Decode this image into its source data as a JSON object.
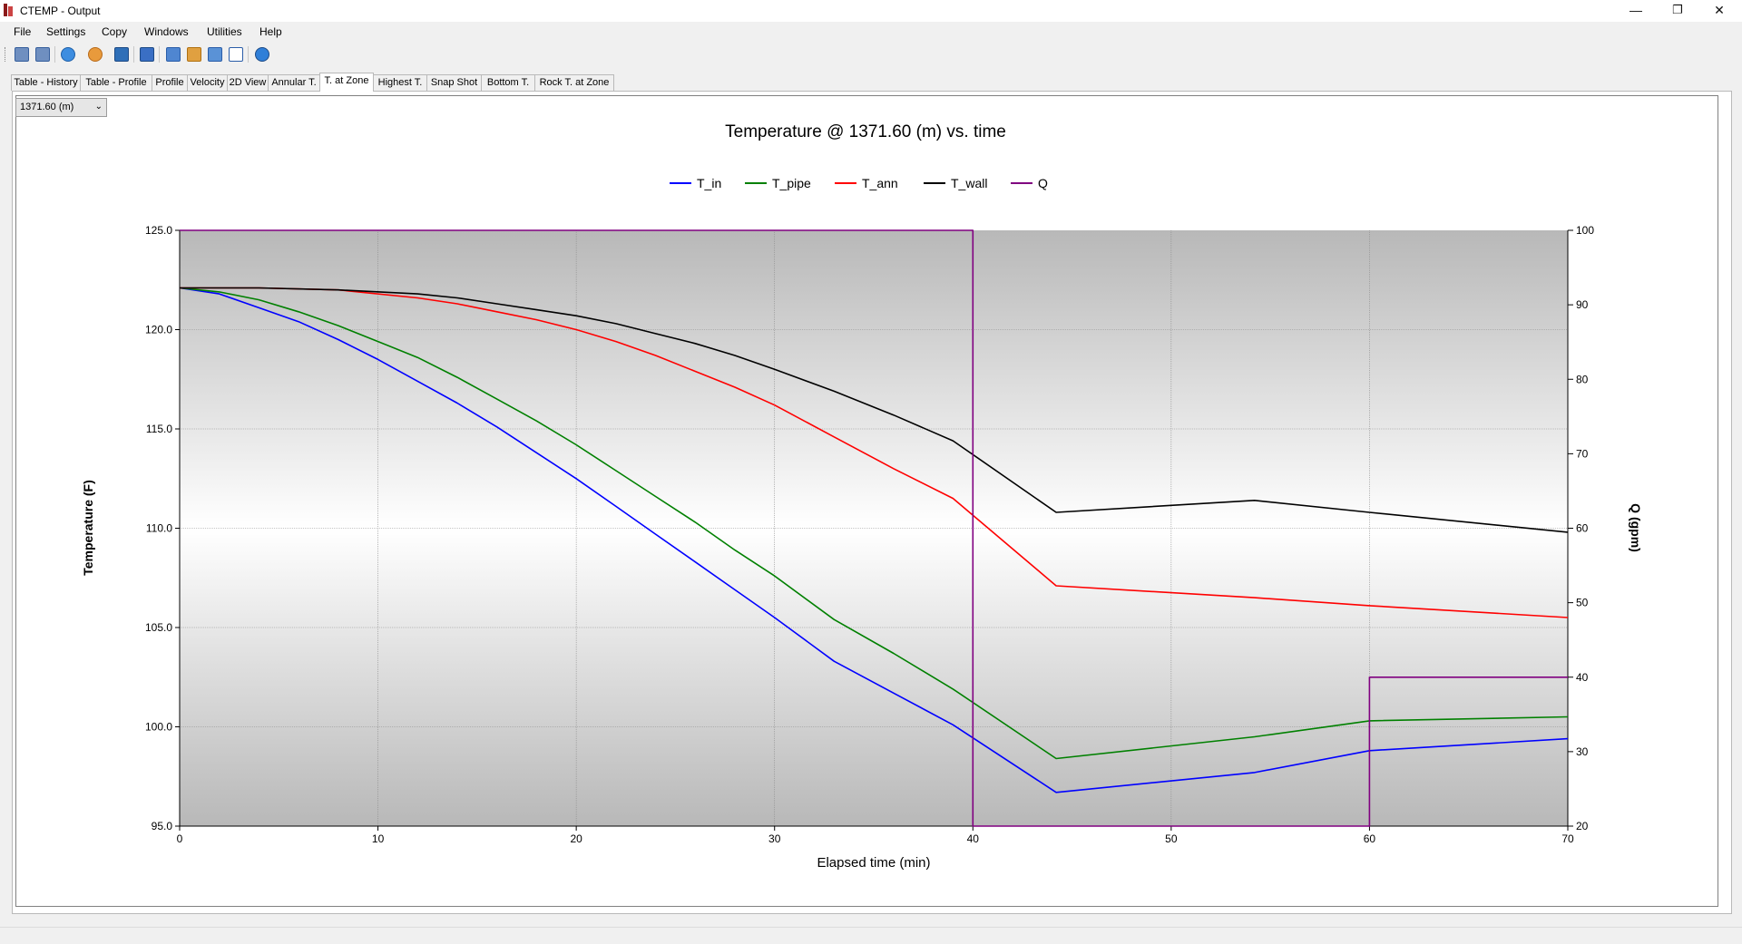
{
  "window": {
    "title": "CTEMP - Output",
    "minimize_glyph": "—",
    "maximize_glyph": "❐",
    "close_glyph": "✕"
  },
  "menu": [
    "File",
    "Settings",
    "Copy",
    "Windows",
    "Utilities",
    "Help"
  ],
  "toolbar_icons": [
    "open-table-icon",
    "open-table-2-icon",
    "export-icon",
    "print-icon",
    "save-icon",
    "bar-chart-icon",
    "grid-icon",
    "table-grid-icon",
    "list-icon",
    "edit-icon",
    "help-icon"
  ],
  "tabs": [
    "Table - History",
    "Table - Profile",
    "Profile",
    "Velocity",
    "2D View",
    "Annular T.",
    "T. at Zone",
    "Highest T.",
    "Snap Shot",
    "Bottom T.",
    "Rock T. at Zone"
  ],
  "active_tab": "T. at Zone",
  "depth_select": {
    "value": "1371.60 (m)",
    "arrow": "⌄"
  },
  "colors": {
    "T_in": "#0000ff",
    "T_pipe": "#008000",
    "T_ann": "#ff0000",
    "T_wall": "#000000",
    "Q": "#800080"
  },
  "chart_data": {
    "type": "line",
    "title": "Temperature @ 1371.60 (m) vs. time",
    "xlabel": "Elapsed time (min)",
    "ylabel": "Temperature (F)",
    "y2label": "Q (gpm)",
    "xlim": [
      0,
      70
    ],
    "ylim": [
      95,
      125
    ],
    "y2lim": [
      20,
      100
    ],
    "xticks": [
      "0",
      "10",
      "20",
      "30",
      "40",
      "50",
      "60",
      "70"
    ],
    "yticks": [
      "95.0",
      "100.0",
      "105.0",
      "110.0",
      "115.0",
      "120.0",
      "125.0"
    ],
    "y2ticks": [
      "20",
      "30",
      "40",
      "50",
      "60",
      "70",
      "80",
      "90",
      "100"
    ],
    "legend_position": "top",
    "grid": true,
    "series": [
      {
        "name": "T_in",
        "axis": "left",
        "x": [
          0,
          2,
          4,
          6,
          8,
          10,
          12,
          14,
          16,
          18,
          20,
          22,
          24,
          26,
          28,
          30,
          33,
          36,
          39,
          44.2,
          54.2,
          60,
          70
        ],
        "y": [
          122.1,
          121.8,
          121.1,
          120.4,
          119.5,
          118.5,
          117.4,
          116.3,
          115.1,
          113.8,
          112.5,
          111.1,
          109.7,
          108.3,
          106.9,
          105.5,
          103.3,
          101.7,
          100.1,
          96.7,
          97.7,
          98.8,
          99.4
        ]
      },
      {
        "name": "T_pipe",
        "axis": "left",
        "x": [
          0,
          2,
          4,
          6,
          8,
          10,
          12,
          14,
          16,
          18,
          20,
          22,
          24,
          26,
          28,
          30,
          33,
          36,
          39,
          44.2,
          54.2,
          60,
          70
        ],
        "y": [
          122.1,
          121.9,
          121.5,
          120.9,
          120.2,
          119.4,
          118.6,
          117.6,
          116.5,
          115.4,
          114.2,
          112.9,
          111.6,
          110.3,
          108.9,
          107.6,
          105.4,
          103.7,
          101.9,
          98.4,
          99.5,
          100.3,
          100.5
        ]
      },
      {
        "name": "T_ann",
        "axis": "left",
        "x": [
          0,
          4,
          8,
          12,
          14,
          16,
          18,
          20,
          22,
          24,
          26,
          28,
          30,
          33,
          36,
          39,
          44.2,
          54.2,
          60,
          70
        ],
        "y": [
          122.1,
          122.1,
          122.0,
          121.6,
          121.3,
          120.9,
          120.5,
          120.0,
          119.4,
          118.7,
          117.9,
          117.1,
          116.2,
          114.6,
          113.0,
          111.5,
          107.1,
          106.5,
          106.1,
          105.5
        ]
      },
      {
        "name": "T_wall",
        "axis": "left",
        "x": [
          0,
          4,
          8,
          12,
          14,
          16,
          18,
          20,
          22,
          24,
          26,
          28,
          30,
          33,
          36,
          39,
          44.2,
          54.2,
          60,
          70
        ],
        "y": [
          122.1,
          122.1,
          122.0,
          121.8,
          121.6,
          121.3,
          121.0,
          120.7,
          120.3,
          119.8,
          119.3,
          118.7,
          118.0,
          116.9,
          115.7,
          114.4,
          110.8,
          111.4,
          110.8,
          109.8
        ]
      },
      {
        "name": "Q",
        "axis": "right",
        "x": [
          0,
          40,
          40,
          60,
          60,
          70
        ],
        "y": [
          100,
          100,
          20,
          20,
          40,
          40
        ]
      }
    ]
  }
}
